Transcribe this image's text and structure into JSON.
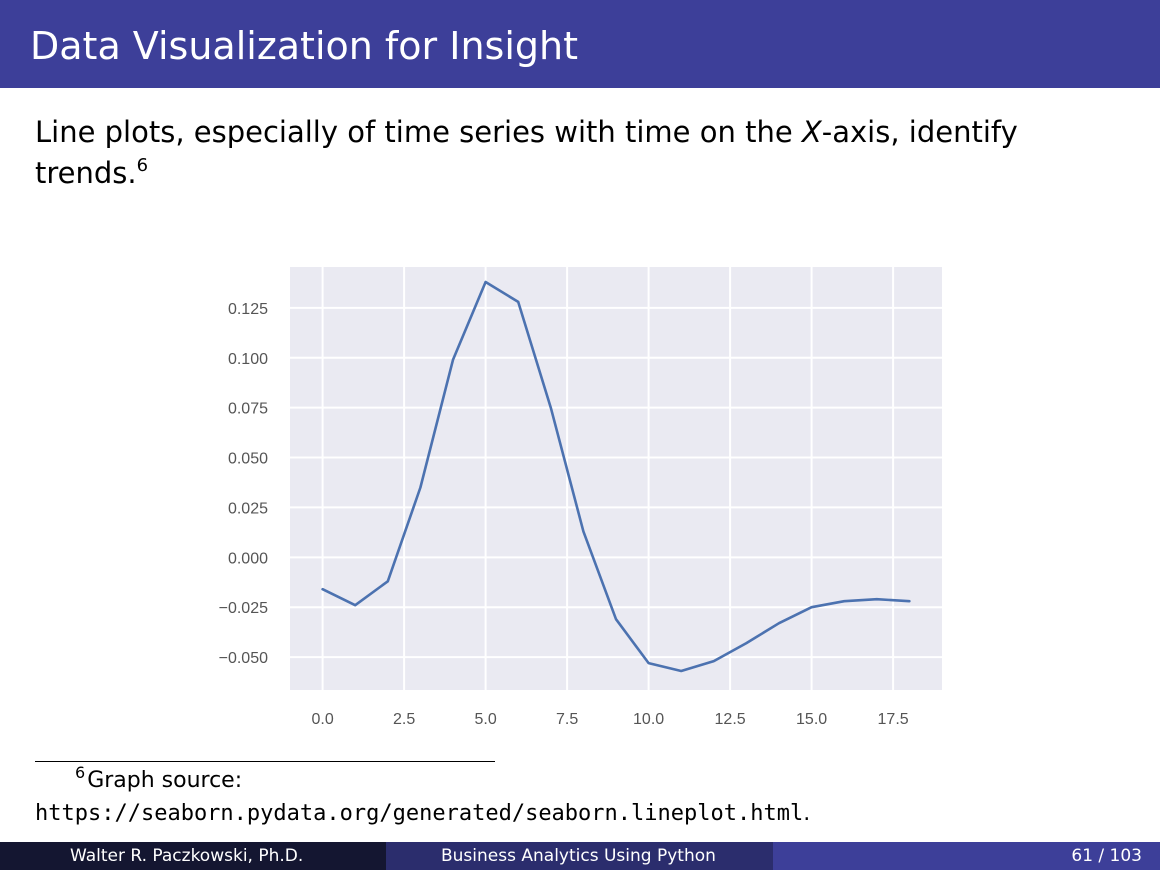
{
  "slide": {
    "title": "Data Visualization for Insight",
    "body_before": "Line plots, especially of time series with time on the ",
    "body_axis": "X",
    "body_after": "-axis, identify trends.",
    "footnote_mark": "6"
  },
  "footnote": {
    "mark": "6",
    "label": "Graph source:",
    "url": "https://seaborn.pydata.org/generated/seaborn.lineplot.html",
    "tail": "."
  },
  "footer": {
    "author": "Walter R. Paczkowski, Ph.D.",
    "course": "Business Analytics Using Python",
    "page": "61 / 103"
  },
  "colors": {
    "header": "#3d3f99",
    "footer_dark": "#141631",
    "footer_mid": "#2b2d6d",
    "plot_bg": "#eaeaf2",
    "line": "#4c72b0"
  },
  "chart_data": {
    "type": "line",
    "title": "",
    "xlabel": "",
    "ylabel": "",
    "x": [
      0,
      1,
      2,
      3,
      4,
      5,
      6,
      7,
      8,
      9,
      10,
      11,
      12,
      13,
      14,
      15,
      16,
      17,
      18
    ],
    "values": [
      -0.016,
      -0.024,
      -0.012,
      0.035,
      0.099,
      0.138,
      0.128,
      0.075,
      0.013,
      -0.031,
      -0.053,
      -0.057,
      -0.052,
      -0.043,
      -0.033,
      -0.025,
      -0.022,
      -0.021,
      -0.022
    ],
    "xlim": [
      -1.0,
      19.0
    ],
    "ylim": [
      -0.0665,
      0.1455
    ],
    "xticks": [
      0.0,
      2.5,
      5.0,
      7.5,
      10.0,
      12.5,
      15.0,
      17.5
    ],
    "xtick_labels": [
      "0.0",
      "2.5",
      "5.0",
      "7.5",
      "10.0",
      "12.5",
      "15.0",
      "17.5"
    ],
    "yticks": [
      -0.05,
      -0.025,
      0.0,
      0.025,
      0.05,
      0.075,
      0.1,
      0.125
    ],
    "ytick_labels": [
      "−0.050",
      "−0.025",
      "0.000",
      "0.025",
      "0.050",
      "0.075",
      "0.100",
      "0.125"
    ],
    "grid": true
  }
}
